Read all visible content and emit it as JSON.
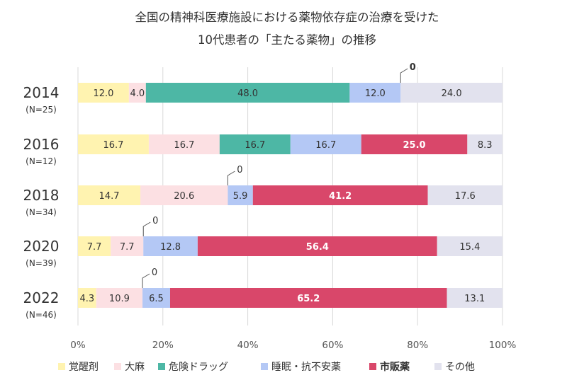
{
  "chart_data": {
    "type": "bar",
    "stacked": true,
    "orientation": "horizontal",
    "title": "全国の精神科医療施設における薬物依存症の治療を受けた",
    "subtitle": "10代患者の「主たる薬物」の推移",
    "categories": [
      {
        "year": "2014",
        "n": "(N=25)"
      },
      {
        "year": "2016",
        "n": "(N=12)"
      },
      {
        "year": "2018",
        "n": "(N=34)"
      },
      {
        "year": "2020",
        "n": "(N=39)"
      },
      {
        "year": "2022",
        "n": "(N=46)"
      }
    ],
    "series": [
      {
        "name": "覚醒剤",
        "color": "#FFF3B0",
        "label_color": "#333333",
        "bold": false,
        "values": [
          12.0,
          16.7,
          14.7,
          7.7,
          4.3
        ],
        "labels": [
          "12.0",
          "16.7",
          "14.7",
          "7.7",
          "4.3"
        ]
      },
      {
        "name": "大麻",
        "color": "#FCE0E3",
        "label_color": "#333333",
        "bold": false,
        "values": [
          4.0,
          16.7,
          20.6,
          7.7,
          10.9
        ],
        "labels": [
          "4.0",
          "16.7",
          "20.6",
          "7.7",
          "10.9"
        ]
      },
      {
        "name": "危険ドラッグ",
        "color": "#4DB7A5",
        "label_color": "#333333",
        "bold": false,
        "values": [
          48.0,
          16.7,
          0,
          0,
          0
        ],
        "labels": [
          "48.0",
          "16.7",
          "",
          "",
          ""
        ]
      },
      {
        "name": "睡眠・抗不安薬",
        "color": "#B4C8F5",
        "label_color": "#333333",
        "bold": false,
        "values": [
          12.0,
          16.7,
          5.9,
          12.8,
          6.5
        ],
        "labels": [
          "12.0",
          "16.7",
          "5.9",
          "12.8",
          "6.5"
        ]
      },
      {
        "name": "市販薬",
        "color": "#D9476A",
        "label_color": "#ffffff",
        "bold": true,
        "values": [
          0,
          25.0,
          41.2,
          56.4,
          65.2
        ],
        "labels": [
          "",
          "25.0",
          "41.2",
          "56.4",
          "65.2"
        ]
      },
      {
        "name": "その他",
        "color": "#E2E2EE",
        "label_color": "#333333",
        "bold": false,
        "values": [
          24.0,
          8.3,
          17.6,
          15.4,
          13.1
        ],
        "labels": [
          "24.0",
          "8.3",
          "17.6",
          "15.4",
          "13.1"
        ]
      }
    ],
    "zero_callouts": [
      {
        "category": "2014",
        "series": "市販薬",
        "label": "0",
        "bold": true
      },
      {
        "category": "2018",
        "series": "危険ドラッグ",
        "label": "0",
        "bold": false
      },
      {
        "category": "2020",
        "series": "危険ドラッグ",
        "label": "0",
        "bold": false
      },
      {
        "category": "2022",
        "series": "危険ドラッグ",
        "label": "0",
        "bold": false
      }
    ],
    "x_ticks": [
      "0%",
      "20%",
      "40%",
      "60%",
      "80%",
      "100%"
    ],
    "xlim": [
      0,
      100
    ],
    "grid": true,
    "legend_position": "bottom"
  }
}
